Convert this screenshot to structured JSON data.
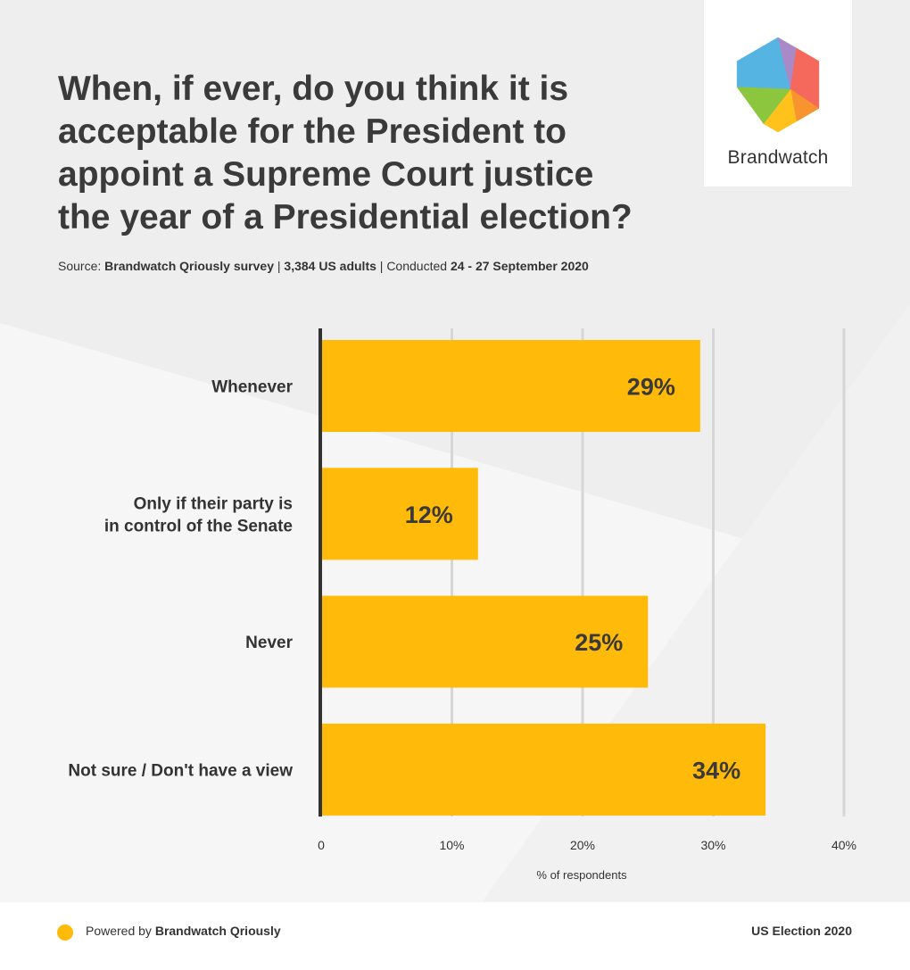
{
  "header": {
    "title_lines": [
      "When, if ever, do you think it is",
      "acceptable for the President to",
      "appoint a Supreme Court justice",
      "the year of a Presidential election?"
    ],
    "source_prefix": "Source: ",
    "source_name": "Brandwatch Qriously survey",
    "source_sep1": " | ",
    "source_sample": "3,384 US adults",
    "source_sep2": " | Conducted ",
    "source_dates": "24 - 27 September 2020"
  },
  "logo": {
    "text": "Brandwatch",
    "colors": [
      "#56b4e3",
      "#a98ac6",
      "#f4695c",
      "#f7942f",
      "#ffc21c",
      "#8cc63f"
    ]
  },
  "chart_data": {
    "type": "bar",
    "orientation": "horizontal",
    "categories": [
      [
        "Whenever"
      ],
      [
        "Only if their party is",
        "in control of the Senate"
      ],
      [
        "Never"
      ],
      [
        "Not sure / Don't have a view"
      ]
    ],
    "values": [
      29,
      12,
      25,
      34
    ],
    "value_labels": [
      "29%",
      "12%",
      "25%",
      "34%"
    ],
    "xticks": [
      "0",
      "10%",
      "20%",
      "30%",
      "40%"
    ],
    "xlim": [
      0,
      40
    ],
    "xlabel": "% of respondents",
    "grid": true,
    "bar_color": "#ffba0a"
  },
  "footer": {
    "powered_prefix": "Powered by ",
    "powered_name": "Brandwatch Qriously",
    "right_text": "US Election 2020",
    "dot_color": "#ffba0a"
  }
}
